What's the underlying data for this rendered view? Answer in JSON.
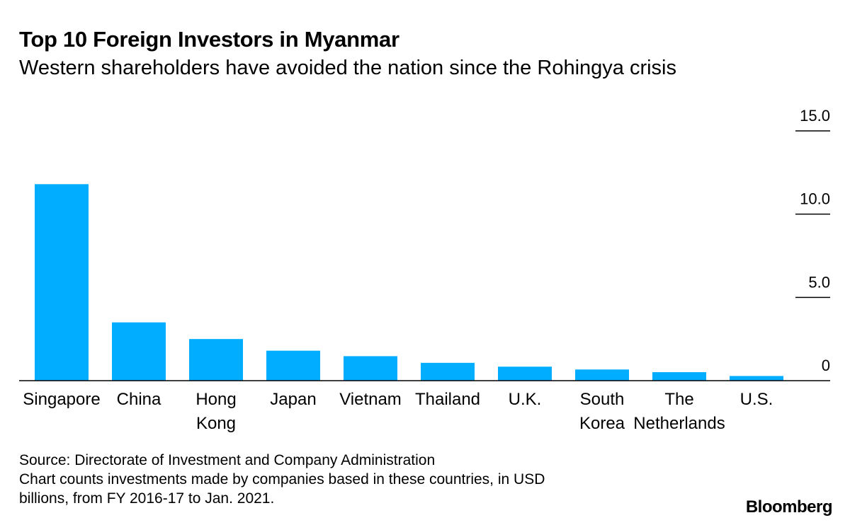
{
  "header": {
    "title": "Top 10 Foreign Investors in Myanmar",
    "subtitle": "Western shareholders have avoided the nation since the Rohingya crisis"
  },
  "footer": {
    "source": "Source: Directorate of Investment and Company Administration",
    "note_line1": "Chart counts investments made by companies based in these countries, in USD",
    "note_line2": "billions, from FY 2016-17 to Jan. 2021.",
    "brand": "Bloomberg"
  },
  "chart_data": {
    "type": "bar",
    "title": "Top 10 Foreign Investors in Myanmar",
    "subtitle": "Western shareholders have avoided the nation since the Rohingya crisis",
    "categories": [
      [
        "Singapore"
      ],
      [
        "China"
      ],
      [
        "Hong",
        "Kong"
      ],
      [
        "Japan"
      ],
      [
        "Vietnam"
      ],
      [
        "Thailand"
      ],
      [
        "U.K."
      ],
      [
        "South",
        "Korea"
      ],
      [
        "The",
        "Netherlands"
      ],
      [
        "U.S."
      ]
    ],
    "values": [
      11.8,
      3.5,
      2.5,
      1.8,
      1.47,
      1.07,
      0.84,
      0.67,
      0.51,
      0.28
    ],
    "ylim": [
      0,
      15
    ],
    "yticks": [
      {
        "value": 0,
        "label": "0"
      },
      {
        "value": 5,
        "label": "5.0"
      },
      {
        "value": 10,
        "label": "10.0"
      },
      {
        "value": 15,
        "label": "15.0"
      }
    ],
    "bar_color": "#00adff",
    "axis_color": "#000000",
    "grid": false,
    "xlabel": "",
    "ylabel": ""
  }
}
